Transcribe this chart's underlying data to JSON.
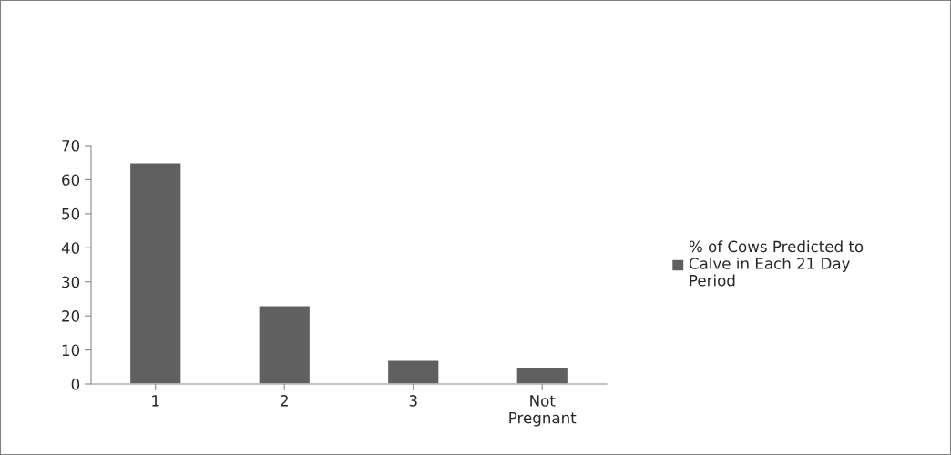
{
  "chart_data": {
    "type": "bar",
    "categories": [
      "1",
      "2",
      "3",
      "Not\nPregnant"
    ],
    "series": [
      {
        "name": "% of Cows Predicted to\nCalve in Each 21 Day\nPeriod",
        "color": "#606060",
        "values": [
          65,
          23,
          7,
          5
        ]
      }
    ],
    "ylim": [
      0,
      70
    ],
    "yticks": [
      0,
      10,
      20,
      30,
      40,
      50,
      60,
      70
    ],
    "grid": false,
    "legend": "right"
  }
}
